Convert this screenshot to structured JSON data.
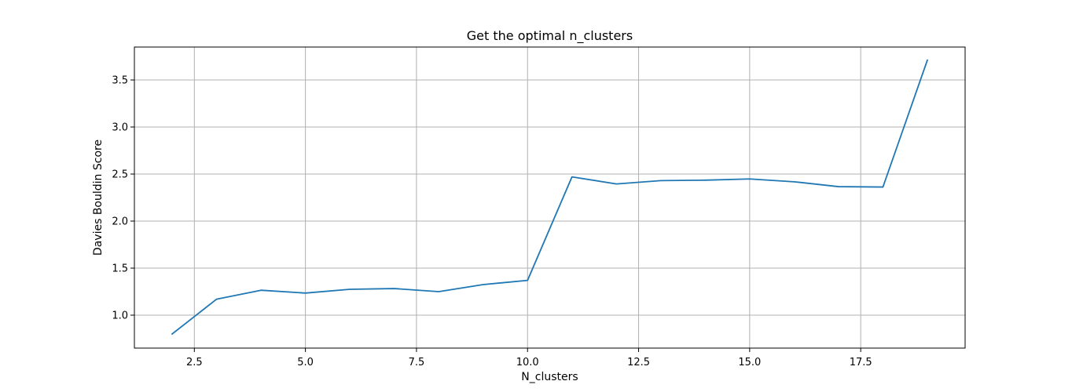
{
  "chart_data": {
    "type": "line",
    "title": "Get the optimal n_clusters",
    "xlabel": "N_clusters",
    "ylabel": "Davies Bouldin Score",
    "xlim": [
      1.15,
      19.85
    ],
    "ylim": [
      0.65,
      3.85
    ],
    "xticks": [
      2.5,
      5.0,
      7.5,
      10.0,
      12.5,
      15.0,
      17.5
    ],
    "xtick_labels": [
      "2.5",
      "5.0",
      "7.5",
      "10.0",
      "12.5",
      "15.0",
      "17.5"
    ],
    "yticks": [
      1.0,
      1.5,
      2.0,
      2.5,
      3.0,
      3.5
    ],
    "ytick_labels": [
      "1.0",
      "1.5",
      "2.0",
      "2.5",
      "3.0",
      "3.5"
    ],
    "grid": true,
    "line_color": "#1f77b4",
    "series": [
      {
        "x": [
          2,
          3,
          4,
          5,
          6,
          7,
          8,
          9,
          10,
          11,
          12,
          13,
          14,
          15,
          16,
          17,
          18,
          19
        ],
        "y": [
          0.8,
          1.17,
          1.265,
          1.235,
          1.275,
          1.283,
          1.25,
          1.325,
          1.37,
          2.47,
          2.395,
          2.43,
          2.435,
          2.448,
          2.418,
          2.366,
          2.362,
          3.71
        ]
      }
    ]
  }
}
